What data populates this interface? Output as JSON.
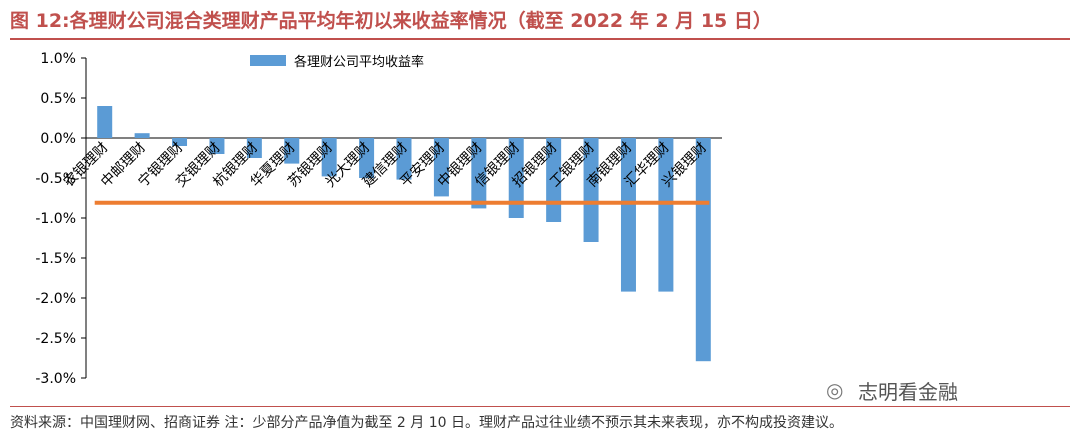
{
  "header": {
    "title": "图 12:各理财公司混合类理财产品平均年初以来收益率情况（截至 2022 年 2 月 15 日）"
  },
  "footer": {
    "source": "资料来源：中国理财网、招商证券 注：少部分产品净值为截至 2 月 10 日。理财产品过往业绩不预示其未来表现，亦不构成投资建议。"
  },
  "watermark": {
    "text": "志明看金融",
    "icon": "wechat-icon"
  },
  "chart_data": {
    "type": "bar",
    "title": "",
    "xlabel": "",
    "ylabel": "",
    "ylim": [
      -3.0,
      1.0
    ],
    "yticks": [
      1.0,
      0.5,
      0.0,
      -0.5,
      -1.0,
      -1.5,
      -2.0,
      -2.5,
      -3.0
    ],
    "ytick_labels": [
      "1.0%",
      "0.5%",
      "0.0%",
      "-0.5%",
      "-1.0%",
      "-1.5%",
      "-2.0%",
      "-2.5%",
      "-3.0%"
    ],
    "categories": [
      "农银理财",
      "中邮理财",
      "宁银理财",
      "交银理财",
      "杭银理财",
      "华夏理财",
      "苏银理财",
      "光大理财",
      "建信理财",
      "平安理财",
      "中银理财",
      "信银理财",
      "招银理财",
      "工银理财",
      "南银理财",
      "汇华理财",
      "兴银理财"
    ],
    "series": [
      {
        "name": "各理财公司平均收益率",
        "color": "#5b9bd5",
        "values": [
          0.4,
          0.06,
          -0.1,
          -0.2,
          -0.25,
          -0.32,
          -0.48,
          -0.5,
          -0.52,
          -0.73,
          -0.88,
          -1.0,
          -1.05,
          -1.3,
          -1.92,
          -1.92,
          -2.79
        ]
      }
    ],
    "reference_line": {
      "value": -0.81,
      "color": "#ed7d31"
    },
    "legend_position": "top",
    "grid": false
  }
}
